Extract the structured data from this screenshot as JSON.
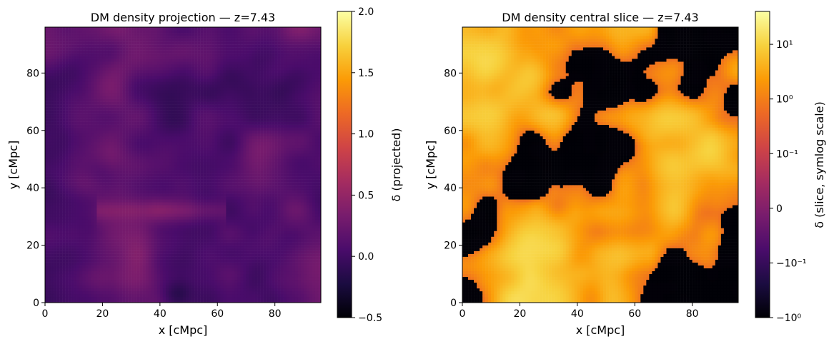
{
  "colors": {
    "cmap_inferno": [
      "#000004",
      "#1b0c41",
      "#4a0c6b",
      "#781c6d",
      "#a52c60",
      "#cf4446",
      "#ed6925",
      "#fb9b06",
      "#f7d13d",
      "#fcffa4"
    ],
    "axis": "#000000",
    "background": "#ffffff"
  },
  "chart_data": [
    {
      "type": "heatmap",
      "title": "DM density projection — z=7.43",
      "xlabel": "x [cMpc]",
      "ylabel": "y [cMpc]",
      "xlim": [
        0,
        96
      ],
      "ylim": [
        0,
        96
      ],
      "xticks": [
        0,
        20,
        40,
        60,
        80
      ],
      "yticks": [
        0,
        20,
        40,
        60,
        80
      ],
      "xtick_labels": [
        "0",
        "20",
        "40",
        "60",
        "80"
      ],
      "ytick_labels": [
        "0",
        "20",
        "40",
        "60",
        "80"
      ],
      "grid_cells": 96,
      "colormap": "inferno",
      "colorbar": {
        "label": "δ (projected)",
        "scale": "linear",
        "range": [
          -0.5,
          2.0
        ],
        "ticks": [
          -0.5,
          0.0,
          0.5,
          1.0,
          1.5,
          2.0
        ],
        "tick_labels": [
          "−0.5",
          "0.0",
          "0.5",
          "1.0",
          "1.5",
          "2.0"
        ]
      },
      "field_summary": {
        "typical_value_range": [
          -0.3,
          0.5
        ],
        "dominant_value": 0.1,
        "notes": "smooth projected overdensity; filament near y≈32 from x≈20 to x≈60; void near x≈45, y≈0–6"
      }
    },
    {
      "type": "heatmap",
      "title": "DM density central slice — z=7.43",
      "xlabel": "x [cMpc]",
      "ylabel": "y [cMpc]",
      "xlim": [
        0,
        96
      ],
      "ylim": [
        0,
        96
      ],
      "xticks": [
        0,
        20,
        40,
        60,
        80
      ],
      "yticks": [
        0,
        20,
        40,
        60,
        80
      ],
      "xtick_labels": [
        "0",
        "20",
        "40",
        "60",
        "80"
      ],
      "ytick_labels": [
        "0",
        "20",
        "40",
        "60",
        "80"
      ],
      "grid_cells": 96,
      "colormap": "inferno",
      "colorbar": {
        "label": "δ (slice, symlog scale)",
        "scale": "symlog",
        "linthresh": 0.1,
        "range": [
          -1.0,
          40.0
        ],
        "ticks": [
          -1.0,
          -0.1,
          0,
          0.1,
          1.0,
          10.0
        ],
        "tick_labels": [
          "−10⁰",
          "−10⁻¹",
          "0",
          "10⁻¹",
          "10⁰",
          "10¹"
        ]
      },
      "field_summary": {
        "typical_value_range": [
          -1.0,
          5.0
        ],
        "notes": "high-contrast cosmic web: underdense voids near −1, filaments and knots up to ≈10"
      }
    }
  ]
}
